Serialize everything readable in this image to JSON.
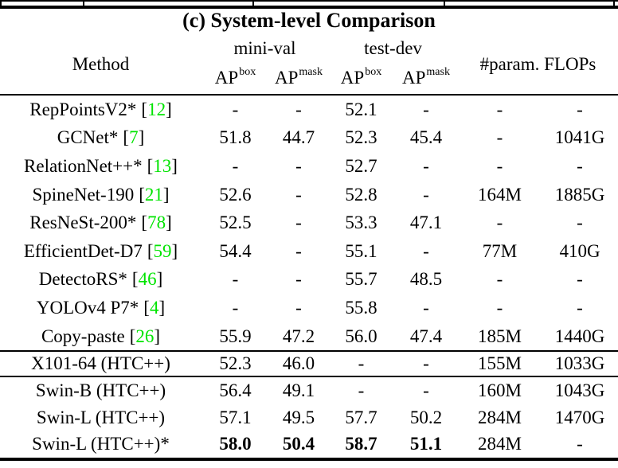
{
  "caption": "(c) System-level Comparison",
  "colors": {
    "citation_green": "#00e400",
    "text": "#000000",
    "rule": "#000000"
  },
  "header": {
    "method": "Method",
    "group_minival": "mini-val",
    "group_testdev": "test-dev",
    "params_flops": "#param. FLOPs",
    "ap_base": "AP",
    "sup_box": "box",
    "sup_mask": "mask"
  },
  "table": {
    "columns": [
      "Method",
      "mini-val AP box",
      "mini-val AP mask",
      "test-dev AP box",
      "test-dev AP mask",
      "#param.",
      "FLOPs"
    ],
    "rows": [
      {
        "section": "main",
        "method": "RepPointsV2*",
        "cite": "12",
        "values": [
          "-",
          "-",
          "52.1",
          "-",
          "-",
          "-"
        ],
        "bold_ap": false
      },
      {
        "section": "main",
        "method": "GCNet*",
        "cite": "7",
        "values": [
          "51.8",
          "44.7",
          "52.3",
          "45.4",
          "-",
          "1041G"
        ],
        "bold_ap": false
      },
      {
        "section": "main",
        "method": "RelationNet++*",
        "cite": "13",
        "values": [
          "-",
          "-",
          "52.7",
          "-",
          "-",
          "-"
        ],
        "bold_ap": false
      },
      {
        "section": "main",
        "method": "SpineNet-190",
        "cite": "21",
        "values": [
          "52.6",
          "-",
          "52.8",
          "-",
          "164M",
          "1885G"
        ],
        "bold_ap": false
      },
      {
        "section": "main",
        "method": "ResNeSt-200*",
        "cite": "78",
        "values": [
          "52.5",
          "-",
          "53.3",
          "47.1",
          "-",
          "-"
        ],
        "bold_ap": false
      },
      {
        "section": "main",
        "method": "EfficientDet-D7",
        "cite": "59",
        "values": [
          "54.4",
          "-",
          "55.1",
          "-",
          "77M",
          "410G"
        ],
        "bold_ap": false
      },
      {
        "section": "main",
        "method": "DetectoRS*",
        "cite": "46",
        "values": [
          "-",
          "-",
          "55.7",
          "48.5",
          "-",
          "-"
        ],
        "bold_ap": false
      },
      {
        "section": "main",
        "method": "YOLOv4 P7*",
        "cite": "4",
        "values": [
          "-",
          "-",
          "55.8",
          "-",
          "-",
          "-"
        ],
        "bold_ap": false
      },
      {
        "section": "main",
        "method": "Copy-paste",
        "cite": "26",
        "values": [
          "55.9",
          "47.2",
          "56.0",
          "47.4",
          "185M",
          "1440G"
        ],
        "bold_ap": false
      },
      {
        "section": "baseline",
        "method": "X101-64 (HTC++)",
        "cite": null,
        "values": [
          "52.3",
          "46.0",
          "-",
          "-",
          "155M",
          "1033G"
        ],
        "bold_ap": false
      },
      {
        "section": "swin",
        "method": "Swin-B (HTC++)",
        "cite": null,
        "values": [
          "56.4",
          "49.1",
          "-",
          "-",
          "160M",
          "1043G"
        ],
        "bold_ap": false
      },
      {
        "section": "swin",
        "method": "Swin-L (HTC++)",
        "cite": null,
        "values": [
          "57.1",
          "49.5",
          "57.7",
          "50.2",
          "284M",
          "1470G"
        ],
        "bold_ap": false
      },
      {
        "section": "swin",
        "method": "Swin-L (HTC++)*",
        "cite": null,
        "values": [
          "58.0",
          "50.4",
          "58.7",
          "51.1",
          "284M",
          "-"
        ],
        "bold_ap": true
      }
    ]
  }
}
